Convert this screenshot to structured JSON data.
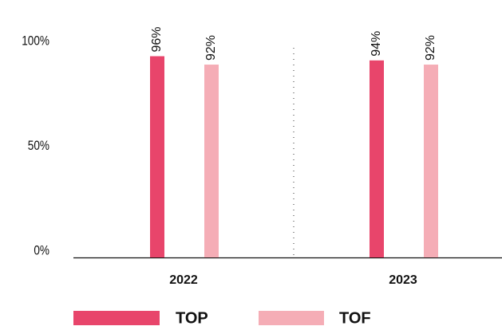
{
  "chart_data": {
    "type": "bar",
    "categories": [
      "2022",
      "2023"
    ],
    "series": [
      {
        "name": "TOP",
        "color": "#e8456b",
        "values": [
          96,
          94
        ],
        "value_labels": [
          "96%",
          "94%"
        ]
      },
      {
        "name": "TOF",
        "color": "#f5adb6",
        "values": [
          92,
          92
        ],
        "value_labels": [
          "92%",
          "92%"
        ]
      }
    ],
    "ylim": [
      0,
      100
    ],
    "yticks": [
      {
        "value": 0,
        "label": "0%"
      },
      {
        "value": 50,
        "label": "50%"
      },
      {
        "value": 100,
        "label": "100%"
      }
    ],
    "legend": "bottom"
  }
}
